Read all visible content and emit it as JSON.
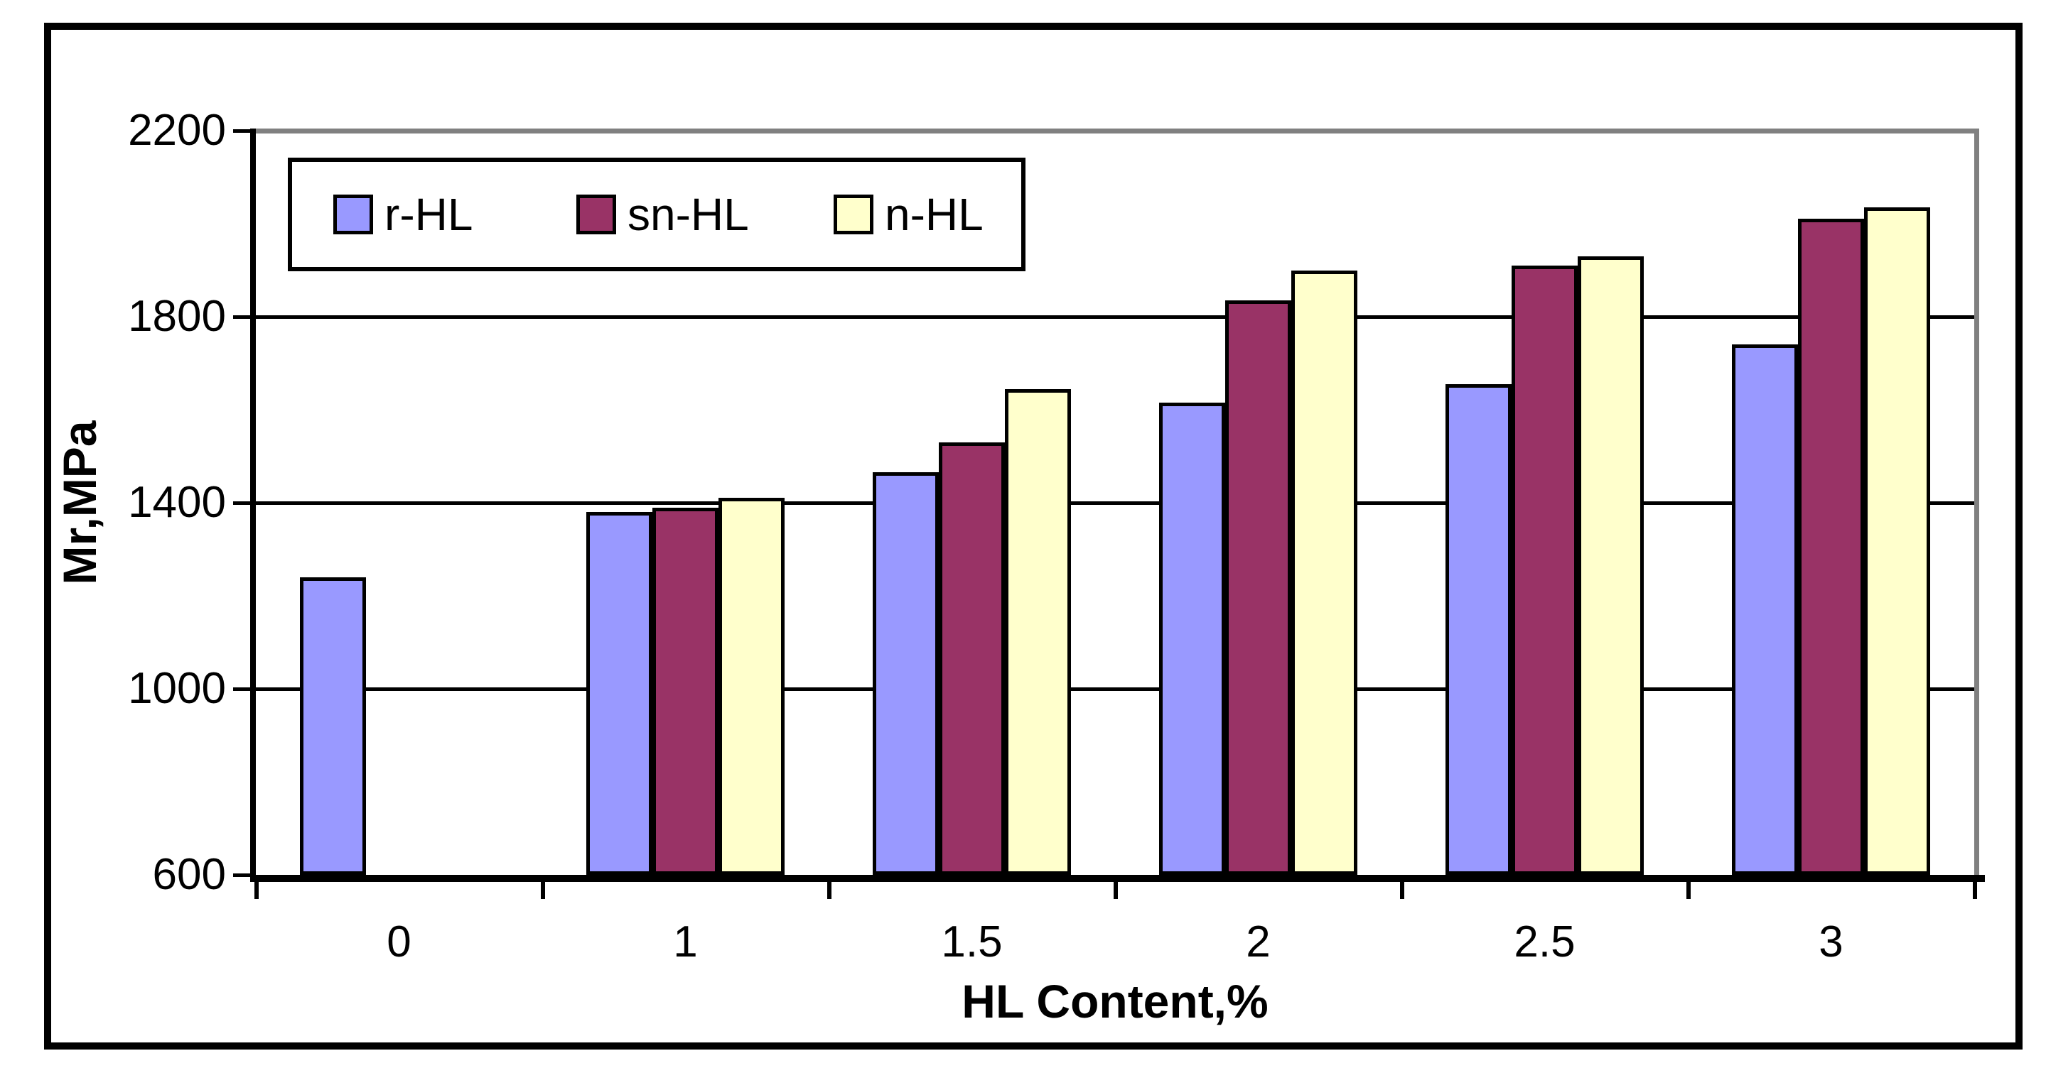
{
  "chart_data": {
    "type": "bar",
    "title": "",
    "xlabel": "HL Content,%",
    "ylabel": "Mr,MPa",
    "categories": [
      "0",
      "1",
      "1.5",
      "2",
      "2.5",
      "3"
    ],
    "series": [
      {
        "name": "r-HL",
        "color": "#9999FF",
        "values": [
          1240,
          1380,
          1465,
          1615,
          1655,
          1740
        ]
      },
      {
        "name": "sn-HL",
        "color": "#993366",
        "values": [
          null,
          1390,
          1530,
          1835,
          1910,
          2010
        ]
      },
      {
        "name": "n-HL",
        "color": "#FFFFCC",
        "values": [
          null,
          1410,
          1645,
          1900,
          1930,
          2035
        ]
      }
    ],
    "ylim": [
      600,
      2200
    ],
    "yticks": [
      600,
      1000,
      1400,
      1800,
      2200
    ],
    "grid": true,
    "legend_position": "top-left-inside",
    "legend_labels": [
      "r-HL",
      "sn-HL",
      "n-HL"
    ]
  },
  "colors": {
    "bar_border": "#000000",
    "axis": "#000000",
    "gridline": "#000000",
    "plot_border_gray": "#808080",
    "background": "#FFFFFF",
    "text": "#000000"
  }
}
